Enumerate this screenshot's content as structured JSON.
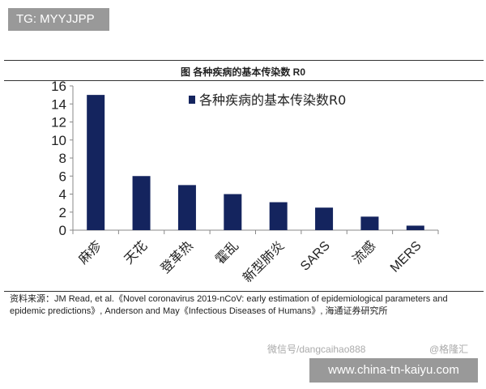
{
  "tag_label": "TG: MYYJJPP",
  "figure_title": "图  各种疾病的基本传染数 R0",
  "chart_data": {
    "type": "bar",
    "title": "图  各种疾病的基本传染数 R0",
    "categories": [
      "麻疹",
      "天花",
      "登革热",
      "霍乱",
      "新型肺炎",
      "SARS",
      "流感",
      "MERS"
    ],
    "series": [
      {
        "name": "各种疾病的基本传染数R0",
        "values": [
          15,
          6,
          5,
          4,
          3.1,
          2.5,
          1.5,
          0.5
        ],
        "color": "#14245e"
      }
    ],
    "ylim": [
      0,
      16
    ],
    "yticks": [
      0,
      2,
      4,
      6,
      8,
      10,
      12,
      14,
      16
    ],
    "legend": "top-right",
    "grid": false
  },
  "source_text": "资料来源：JM Read, et al.《Novel coronavirus 2019-nCoV: early estimation of epidemiological parameters and epidemic predictions》, Anderson and May《Infectious Diseases of Humans》, 海通证券研究所",
  "watermark_1": "微信号/dangcaihao888",
  "watermark_2": "@格隆汇",
  "site_url": "www.china-tn-kaiyu.com"
}
